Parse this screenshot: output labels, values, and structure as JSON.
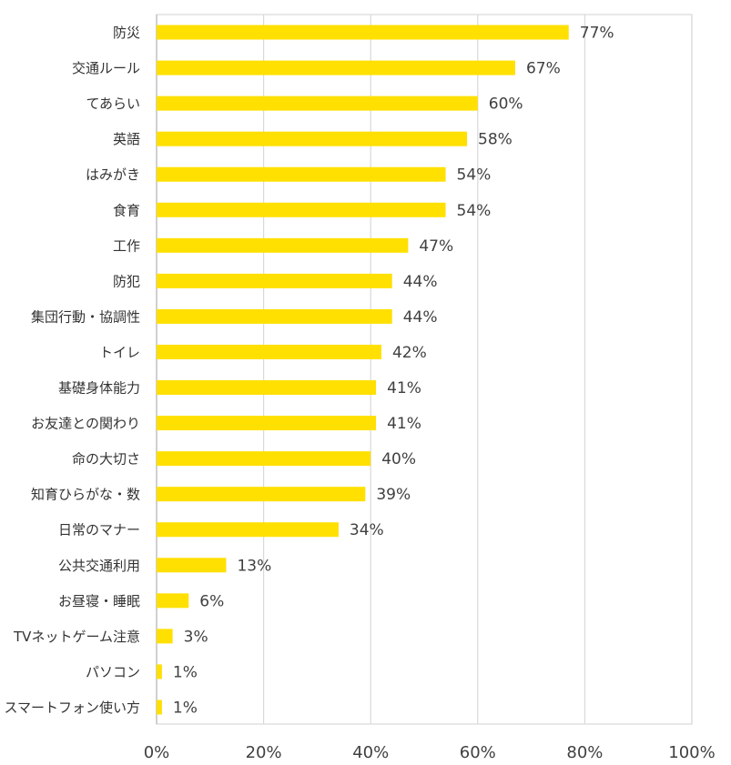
{
  "chart_data": {
    "type": "bar",
    "orientation": "horizontal",
    "title": "",
    "xlabel": "",
    "ylabel": "",
    "categories": [
      "防災",
      "交通ルール",
      "てあらい",
      "英語",
      "はみがき",
      "食育",
      "工作",
      "防犯",
      "集団行動・協調性",
      "トイレ",
      "基礎身体能力",
      "お友達との関わり",
      "命の大切さ",
      "知育ひらがな・数",
      "日常のマナー",
      "公共交通利用",
      "お昼寝・睡眠",
      "TVネットゲーム注意",
      "パソコン",
      "スマートフォン使い方"
    ],
    "values": [
      77,
      67,
      60,
      58,
      54,
      54,
      47,
      44,
      44,
      42,
      41,
      41,
      40,
      39,
      34,
      13,
      6,
      3,
      1,
      1
    ],
    "value_labels": [
      "77%",
      "67%",
      "60%",
      "58%",
      "54%",
      "54%",
      "47%",
      "44%",
      "44%",
      "42%",
      "41%",
      "41%",
      "40%",
      "39%",
      "34%",
      "13%",
      "6%",
      "3%",
      "1%",
      "1%"
    ],
    "xlim": [
      0,
      100
    ],
    "x_ticks": [
      0,
      20,
      40,
      60,
      80,
      100
    ],
    "x_tick_labels": [
      "0%",
      "20%",
      "40%",
      "60%",
      "80%",
      "100%"
    ],
    "grid": true,
    "legend": "none",
    "colors": {
      "bar": "#FFE000",
      "grid": "#D9D9D9",
      "axis": "#BFBFBF",
      "label_text": "#333333",
      "value_text": "#404040"
    }
  }
}
